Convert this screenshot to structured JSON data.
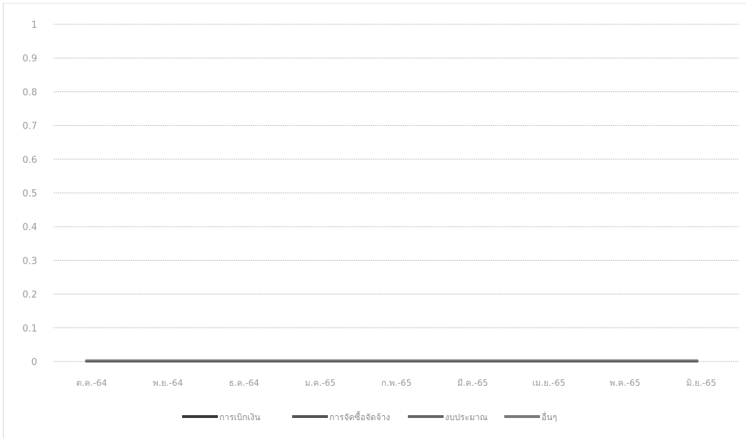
{
  "chart_data": {
    "type": "line",
    "title": "",
    "xlabel": "",
    "ylabel": "",
    "ylim": [
      0,
      1
    ],
    "y_ticks": [
      "0",
      "0.1",
      "0.2",
      "0.3",
      "0.4",
      "0.5",
      "0.6",
      "0.7",
      "0.8",
      "0.9",
      "1"
    ],
    "categories": [
      "ต.ค.-64",
      "พ.ย.-64",
      "ธ.ค.-64",
      "ม.ค.-65",
      "ก.พ.-65",
      "มี.ค.-65",
      "เม.ย.-65",
      "พ.ค.-65",
      "มิ.ย.-65"
    ],
    "series": [
      {
        "name": "การเบิกเงิน",
        "color": "#3a3a3a",
        "values": [
          0,
          0,
          0,
          0,
          0,
          0,
          0,
          0,
          0
        ]
      },
      {
        "name": "การจัดซื้อจัดจ้าง",
        "color": "#555555",
        "values": [
          0,
          0,
          0,
          0,
          0,
          0,
          0,
          0,
          0
        ]
      },
      {
        "name": "งบประมาณ",
        "color": "#666666",
        "values": [
          0,
          0,
          0,
          0,
          0,
          0,
          0,
          0,
          0
        ]
      },
      {
        "name": "อื่นๆ",
        "color": "#7a7a7a",
        "values": [
          0,
          0,
          0,
          0,
          0,
          0,
          0,
          0,
          0
        ]
      }
    ],
    "grid": true,
    "legend_position": "bottom"
  }
}
